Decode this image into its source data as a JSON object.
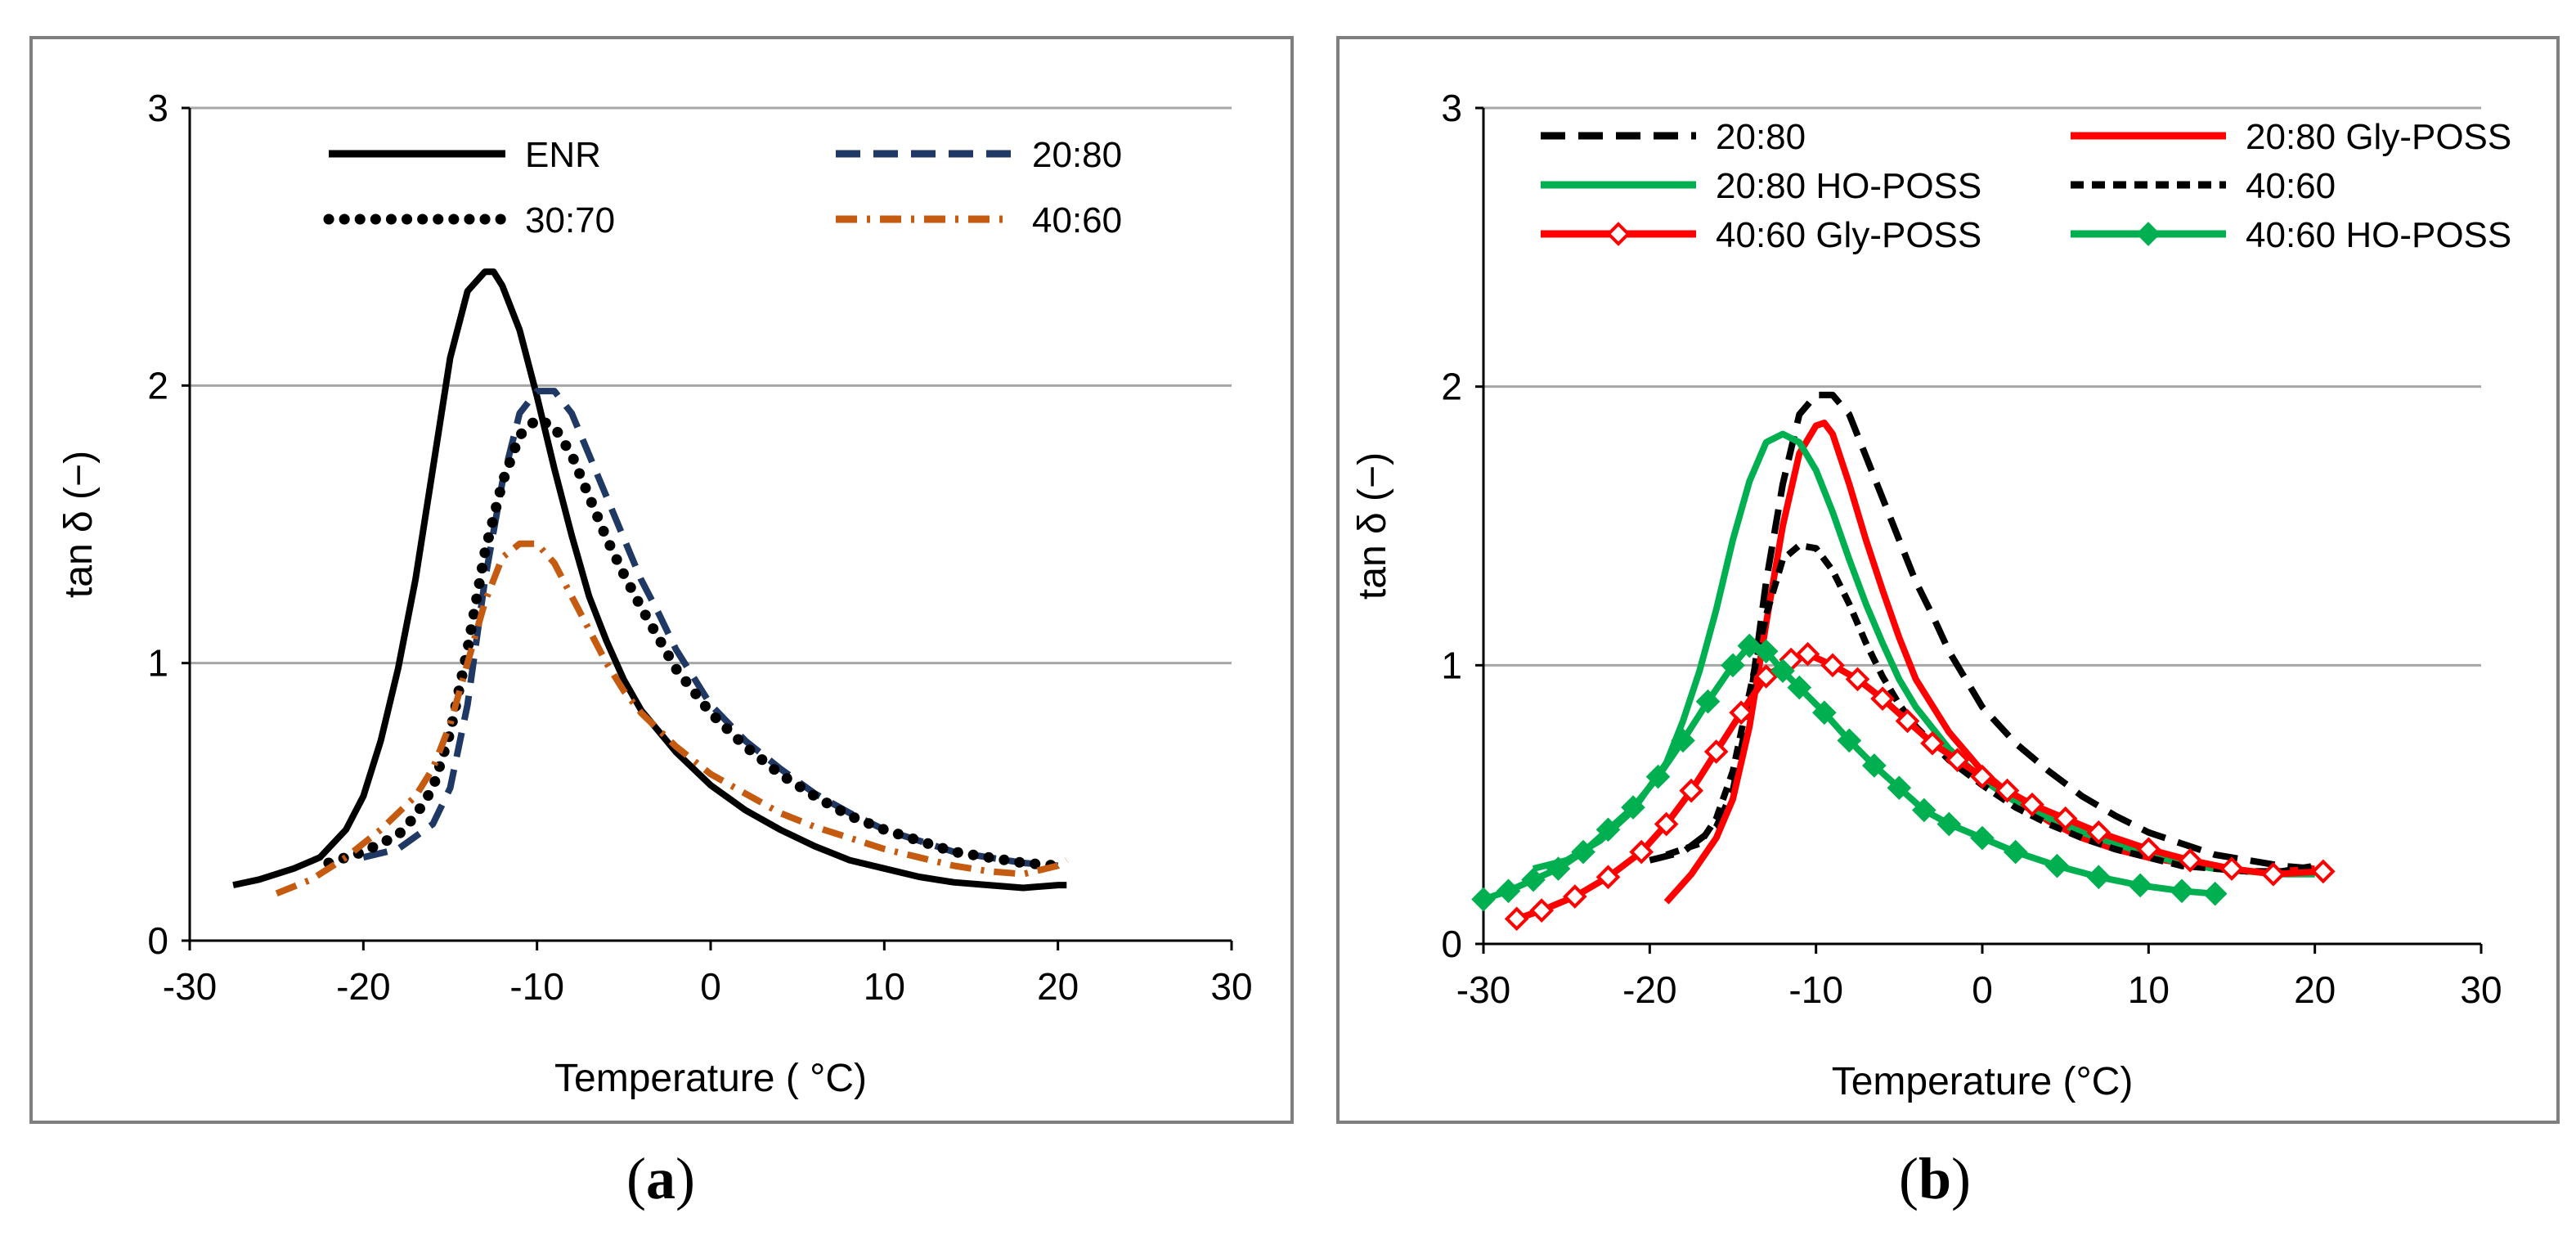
{
  "chart_data": [
    {
      "type": "line",
      "panel_label": "a",
      "xlabel": "Temperature ( °C)",
      "ylabel": "tan δ (−)",
      "xlim": [
        -30,
        30
      ],
      "ylim": [
        0,
        3
      ],
      "xticks": [
        -30,
        -20,
        -10,
        0,
        10,
        20,
        30
      ],
      "yticks": [
        0,
        1,
        2,
        3
      ],
      "grid": "horizontal",
      "legend_placement": "top",
      "series": [
        {
          "name": "ENR",
          "color": "#000000",
          "style": "solid",
          "x": [
            -27.5,
            -26,
            -24,
            -22.5,
            -21,
            -20,
            -19,
            -18,
            -17,
            -16,
            -15,
            -14,
            -13,
            -12.5,
            -12,
            -11,
            -10,
            -9,
            -8,
            -7,
            -6,
            -5,
            -4,
            -2,
            0,
            2,
            4,
            6,
            8,
            10,
            12,
            14,
            16,
            18,
            20,
            20.5
          ],
          "y": [
            0.2,
            0.22,
            0.26,
            0.3,
            0.4,
            0.52,
            0.72,
            0.98,
            1.3,
            1.7,
            2.1,
            2.34,
            2.41,
            2.41,
            2.36,
            2.2,
            1.96,
            1.7,
            1.46,
            1.24,
            1.08,
            0.94,
            0.83,
            0.68,
            0.56,
            0.47,
            0.4,
            0.34,
            0.29,
            0.26,
            0.23,
            0.21,
            0.2,
            0.19,
            0.2,
            0.2
          ]
        },
        {
          "name": "20:80",
          "color": "#1f3864",
          "style": "dashed",
          "x": [
            -20,
            -18,
            -16,
            -15,
            -14,
            -13,
            -12,
            -11,
            -10,
            -9,
            -8,
            -7,
            -6,
            -5,
            -4,
            -3,
            -2,
            -1,
            0,
            2,
            4,
            6,
            8,
            10,
            12,
            14,
            16,
            18,
            20
          ],
          "y": [
            0.3,
            0.33,
            0.42,
            0.55,
            0.85,
            1.3,
            1.65,
            1.9,
            1.98,
            1.98,
            1.9,
            1.75,
            1.6,
            1.45,
            1.3,
            1.18,
            1.05,
            0.95,
            0.85,
            0.72,
            0.62,
            0.53,
            0.46,
            0.4,
            0.36,
            0.32,
            0.3,
            0.28,
            0.27
          ]
        },
        {
          "name": "30:70",
          "color": "#000000",
          "style": "dotted",
          "x": [
            -22,
            -20,
            -18,
            -17,
            -16,
            -15,
            -14,
            -13,
            -12,
            -11,
            -10,
            -9,
            -8,
            -7,
            -6,
            -5,
            -4,
            -2,
            0,
            2,
            4,
            6,
            8,
            10,
            12,
            14,
            16,
            18,
            20
          ],
          "y": [
            0.28,
            0.32,
            0.38,
            0.45,
            0.55,
            0.75,
            1.05,
            1.4,
            1.65,
            1.82,
            1.88,
            1.85,
            1.75,
            1.6,
            1.45,
            1.32,
            1.2,
            0.98,
            0.82,
            0.7,
            0.6,
            0.52,
            0.45,
            0.4,
            0.36,
            0.32,
            0.3,
            0.28,
            0.27
          ]
        },
        {
          "name": "40:60",
          "color": "#c55a11",
          "style": "dash-dot",
          "x": [
            -25,
            -23,
            -21,
            -19,
            -17,
            -16,
            -15,
            -14,
            -13,
            -12,
            -11,
            -10,
            -9,
            -8,
            -7,
            -6,
            -5,
            -4,
            -2,
            0,
            2,
            4,
            6,
            8,
            10,
            12,
            14,
            16,
            18,
            20,
            20.5
          ],
          "y": [
            0.17,
            0.22,
            0.3,
            0.4,
            0.52,
            0.62,
            0.78,
            1.0,
            1.22,
            1.38,
            1.43,
            1.43,
            1.36,
            1.24,
            1.12,
            1.0,
            0.9,
            0.82,
            0.7,
            0.6,
            0.53,
            0.46,
            0.41,
            0.37,
            0.33,
            0.3,
            0.27,
            0.25,
            0.24,
            0.27,
            0.29
          ]
        }
      ]
    },
    {
      "type": "line",
      "panel_label": "b",
      "xlabel": "Temperature (°C)",
      "ylabel": "tan δ (−)",
      "xlim": [
        -30,
        30
      ],
      "ylim": [
        0,
        3
      ],
      "xticks": [
        -30,
        -20,
        -10,
        0,
        10,
        20,
        30
      ],
      "yticks": [
        0,
        1,
        2,
        3
      ],
      "grid": "horizontal",
      "legend_placement": "top",
      "series": [
        {
          "name": "20:80",
          "color": "#000000",
          "style": "dashed",
          "x": [
            -20,
            -18,
            -16,
            -15,
            -14,
            -13,
            -12,
            -11,
            -10,
            -9,
            -8,
            -7,
            -6,
            -5,
            -4,
            -3,
            -2,
            -1,
            0,
            2,
            4,
            6,
            8,
            10,
            12,
            14,
            16,
            18,
            20
          ],
          "y": [
            0.3,
            0.33,
            0.42,
            0.55,
            0.85,
            1.3,
            1.65,
            1.9,
            1.97,
            1.97,
            1.9,
            1.75,
            1.6,
            1.45,
            1.3,
            1.18,
            1.05,
            0.95,
            0.85,
            0.72,
            0.62,
            0.53,
            0.46,
            0.4,
            0.36,
            0.32,
            0.3,
            0.28,
            0.27
          ]
        },
        {
          "name": "20:80 Gly-POSS",
          "color": "#ff0000",
          "style": "solid",
          "x": [
            -19,
            -17.5,
            -16,
            -15,
            -14,
            -13,
            -12,
            -11,
            -10,
            -9.5,
            -9,
            -8,
            -7,
            -6,
            -5,
            -4,
            -2,
            0,
            2,
            4,
            6,
            8,
            10,
            12,
            14,
            16,
            18,
            20
          ],
          "y": [
            0.15,
            0.25,
            0.38,
            0.52,
            0.78,
            1.15,
            1.5,
            1.76,
            1.86,
            1.87,
            1.83,
            1.65,
            1.45,
            1.27,
            1.1,
            0.95,
            0.76,
            0.62,
            0.52,
            0.44,
            0.38,
            0.34,
            0.31,
            0.29,
            0.27,
            0.26,
            0.26,
            0.27
          ]
        },
        {
          "name": "20:80 HO-POSS",
          "color": "#00b050",
          "style": "solid",
          "x": [
            -27,
            -25,
            -23,
            -21,
            -19,
            -18,
            -17,
            -16,
            -15,
            -14,
            -13,
            -12,
            -11,
            -10,
            -9,
            -8,
            -7,
            -6,
            -5,
            -4,
            -2,
            0,
            2,
            4,
            6,
            8,
            10,
            12,
            14,
            16,
            18,
            20
          ],
          "y": [
            0.27,
            0.3,
            0.37,
            0.48,
            0.65,
            0.8,
            0.98,
            1.2,
            1.45,
            1.66,
            1.8,
            1.83,
            1.8,
            1.7,
            1.55,
            1.38,
            1.22,
            1.08,
            0.95,
            0.85,
            0.7,
            0.59,
            0.51,
            0.45,
            0.4,
            0.36,
            0.32,
            0.29,
            0.27,
            0.26,
            0.25,
            0.25
          ]
        },
        {
          "name": "40:60",
          "color": "#000000",
          "style": "short-dash",
          "x": [
            -19,
            -17,
            -16,
            -15,
            -14,
            -13,
            -12,
            -11,
            -10,
            -9,
            -8,
            -7,
            -6,
            -5,
            -4,
            -2,
            0,
            2,
            4,
            6,
            8,
            10,
            12,
            14,
            16,
            18,
            20
          ],
          "y": [
            0.32,
            0.36,
            0.45,
            0.62,
            0.9,
            1.18,
            1.38,
            1.43,
            1.42,
            1.34,
            1.22,
            1.08,
            0.96,
            0.86,
            0.78,
            0.66,
            0.57,
            0.49,
            0.43,
            0.38,
            0.34,
            0.31,
            0.28,
            0.27,
            0.26,
            0.26,
            0.28
          ]
        },
        {
          "name": "40:60 Gly-POSS",
          "color": "#ff0000",
          "style": "solid-open-diamond",
          "x": [
            -28,
            -26.5,
            -24.5,
            -22.5,
            -20.5,
            -19,
            -17.5,
            -16,
            -14.5,
            -13,
            -11.5,
            -10.5,
            -9,
            -7.5,
            -6,
            -4.5,
            -3,
            -1.5,
            0,
            1.5,
            3,
            5,
            7,
            10,
            12.5,
            15,
            17.5,
            20.5
          ],
          "y": [
            0.09,
            0.12,
            0.17,
            0.24,
            0.33,
            0.43,
            0.55,
            0.69,
            0.83,
            0.96,
            1.02,
            1.04,
            1.0,
            0.95,
            0.88,
            0.8,
            0.72,
            0.66,
            0.6,
            0.55,
            0.5,
            0.45,
            0.4,
            0.34,
            0.3,
            0.27,
            0.25,
            0.26
          ]
        },
        {
          "name": "40:60 HO-POSS",
          "color": "#00b050",
          "style": "solid-filled-diamond",
          "x": [
            -30,
            -28.5,
            -27,
            -25.5,
            -24,
            -22.5,
            -21,
            -19.5,
            -18,
            -16.5,
            -15,
            -14,
            -13,
            -12,
            -11,
            -9.5,
            -8,
            -6.5,
            -5,
            -3.5,
            -2,
            0,
            2,
            4.5,
            7,
            9.5,
            12,
            14
          ],
          "y": [
            0.16,
            0.19,
            0.23,
            0.27,
            0.33,
            0.41,
            0.49,
            0.6,
            0.73,
            0.87,
            1.0,
            1.07,
            1.05,
            0.98,
            0.92,
            0.83,
            0.73,
            0.64,
            0.56,
            0.48,
            0.43,
            0.38,
            0.33,
            0.28,
            0.24,
            0.21,
            0.19,
            0.18
          ]
        }
      ]
    }
  ]
}
